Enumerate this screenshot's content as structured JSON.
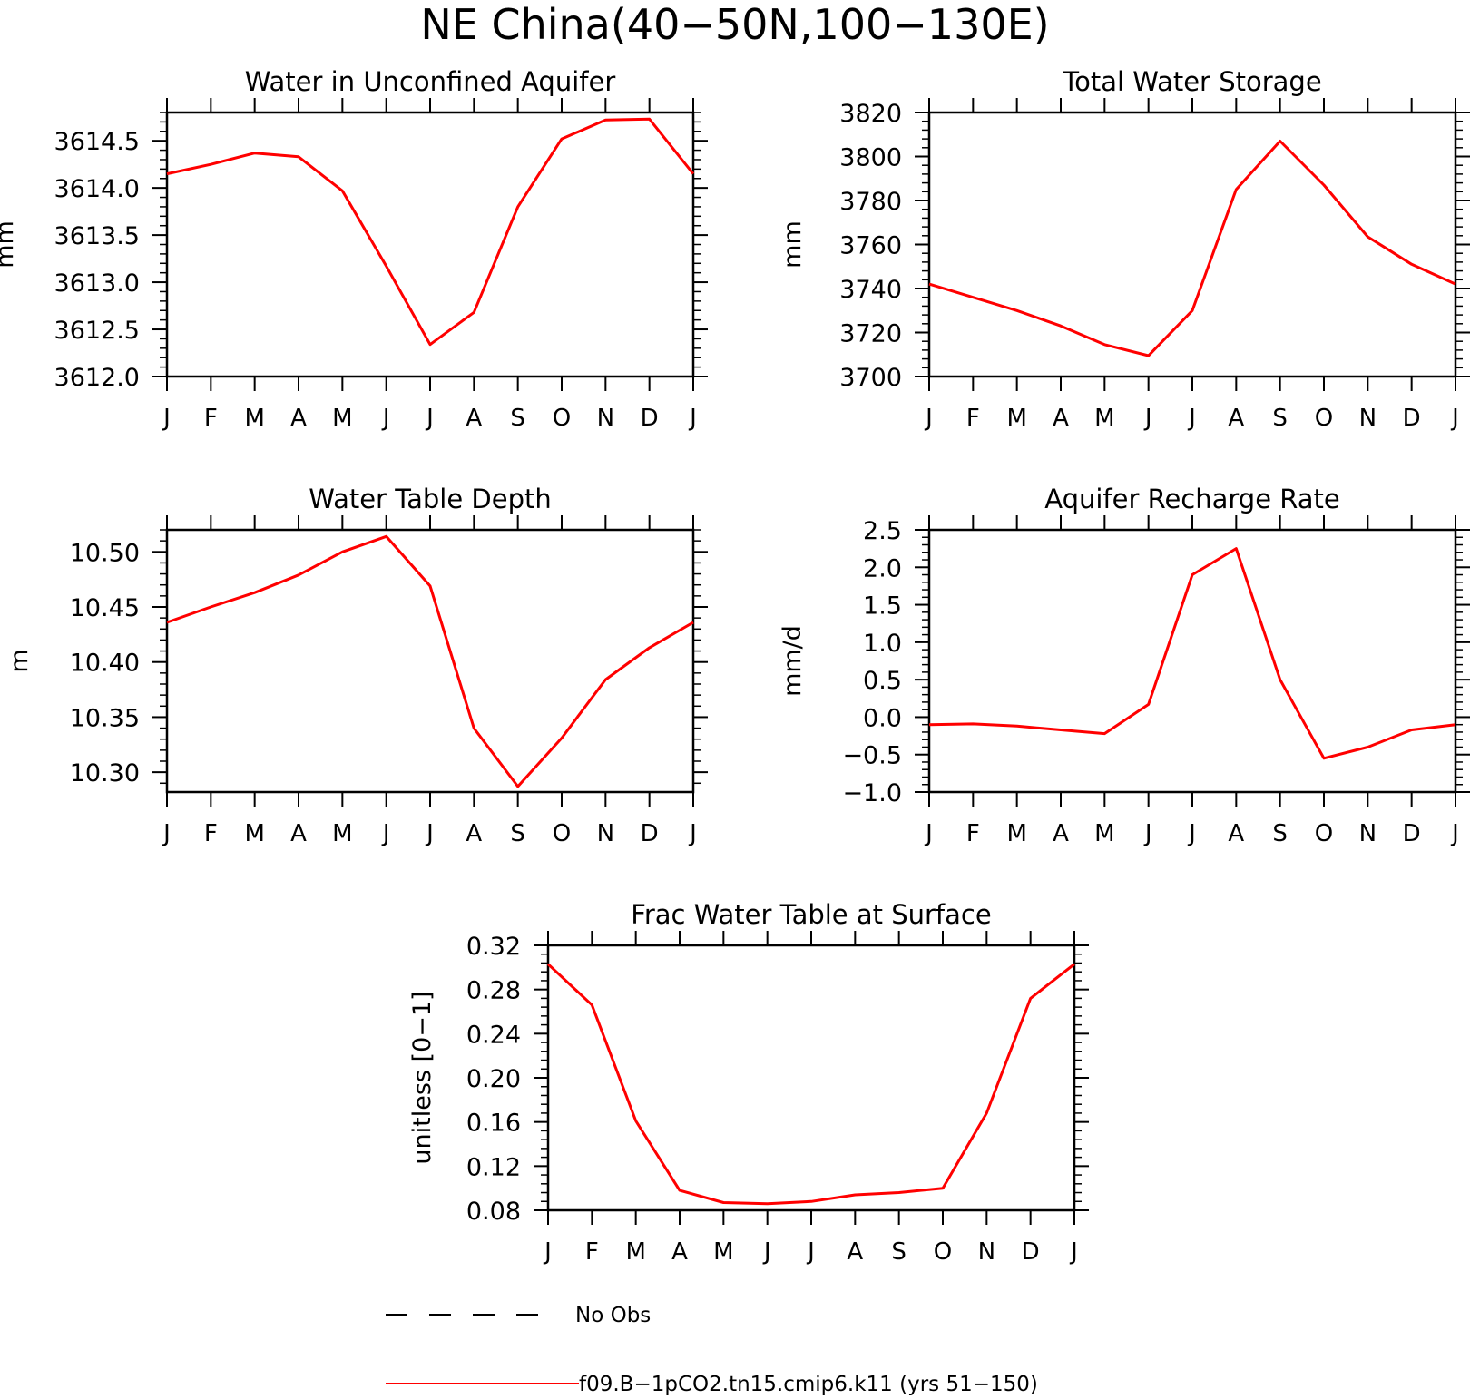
{
  "figure": {
    "title": "NE China(40−50N,100−130E)",
    "line_color": "#ff0000",
    "legend": [
      {
        "label": "No Obs",
        "style": "dashed",
        "color": "#000000"
      },
      {
        "label": "f09.B−1pCO2.tn15.cmip6.k11 (yrs 51−150)",
        "style": "solid",
        "color": "#ff0000"
      }
    ]
  },
  "chart_data": [
    {
      "type": "line",
      "title": "Water in Unconfined Aquifer",
      "ylabel": "mm",
      "categories": [
        "J",
        "F",
        "M",
        "A",
        "M",
        "J",
        "J",
        "A",
        "S",
        "O",
        "N",
        "D",
        "J"
      ],
      "ylim": [
        3612.0,
        3614.8
      ],
      "yticks": [
        3612.0,
        3612.5,
        3613.0,
        3613.5,
        3614.0,
        3614.5
      ],
      "ytick_labels": [
        "3612.0",
        "3612.5",
        "3613.0",
        "3613.5",
        "3614.0",
        "3614.5"
      ],
      "series": [
        {
          "values": [
            3614.15,
            3614.25,
            3614.37,
            3614.33,
            3613.97,
            3613.17,
            3612.34,
            3612.68,
            3613.8,
            3614.52,
            3614.72,
            3614.73,
            3614.15
          ]
        }
      ]
    },
    {
      "type": "line",
      "title": "Total Water Storage",
      "ylabel": "mm",
      "categories": [
        "J",
        "F",
        "M",
        "A",
        "M",
        "J",
        "J",
        "A",
        "S",
        "O",
        "N",
        "D",
        "J"
      ],
      "ylim": [
        3700,
        3820
      ],
      "yticks": [
        3700,
        3720,
        3740,
        3760,
        3780,
        3800,
        3820
      ],
      "ytick_labels": [
        "3700",
        "3720",
        "3740",
        "3760",
        "3780",
        "3800",
        "3820"
      ],
      "series": [
        {
          "values": [
            3742,
            3736,
            3730,
            3723,
            3714.5,
            3709.5,
            3730,
            3785,
            3807,
            3787,
            3763.5,
            3751,
            3742
          ]
        }
      ]
    },
    {
      "type": "line",
      "title": "Water Table Depth",
      "ylabel": "m",
      "categories": [
        "J",
        "F",
        "M",
        "A",
        "M",
        "J",
        "J",
        "A",
        "S",
        "O",
        "N",
        "D",
        "J"
      ],
      "ylim": [
        10.282,
        10.52
      ],
      "yticks": [
        10.3,
        10.35,
        10.4,
        10.45,
        10.5
      ],
      "ytick_labels": [
        "10.30",
        "10.35",
        "10.40",
        "10.45",
        "10.50"
      ],
      "series": [
        {
          "values": [
            10.436,
            10.45,
            10.463,
            10.479,
            10.5,
            10.514,
            10.469,
            10.34,
            10.287,
            10.331,
            10.384,
            10.413,
            10.436
          ]
        }
      ]
    },
    {
      "type": "line",
      "title": "Aquifer Recharge Rate",
      "ylabel": "mm/d",
      "categories": [
        "J",
        "F",
        "M",
        "A",
        "M",
        "J",
        "J",
        "A",
        "S",
        "O",
        "N",
        "D",
        "J"
      ],
      "ylim": [
        -1.0,
        2.5
      ],
      "yticks": [
        -1.0,
        -0.5,
        0.0,
        0.5,
        1.0,
        1.5,
        2.0,
        2.5
      ],
      "ytick_labels": [
        "−1.0",
        "−0.5",
        "0.0",
        "0.5",
        "1.0",
        "1.5",
        "2.0",
        "2.5"
      ],
      "series": [
        {
          "values": [
            -0.1,
            -0.09,
            -0.12,
            -0.17,
            -0.22,
            0.17,
            1.9,
            2.25,
            0.5,
            -0.55,
            -0.4,
            -0.17,
            -0.1
          ]
        }
      ]
    },
    {
      "type": "line",
      "title": "Frac Water Table at Surface",
      "ylabel": "unitless [0−1]",
      "categories": [
        "J",
        "F",
        "M",
        "A",
        "M",
        "J",
        "J",
        "A",
        "S",
        "O",
        "N",
        "D",
        "J"
      ],
      "ylim": [
        0.08,
        0.32
      ],
      "yticks": [
        0.08,
        0.12,
        0.16,
        0.2,
        0.24,
        0.28,
        0.32
      ],
      "ytick_labels": [
        "0.08",
        "0.12",
        "0.16",
        "0.20",
        "0.24",
        "0.28",
        "0.32"
      ],
      "series": [
        {
          "values": [
            0.303,
            0.266,
            0.161,
            0.098,
            0.087,
            0.086,
            0.088,
            0.094,
            0.096,
            0.1,
            0.168,
            0.272,
            0.303
          ]
        }
      ]
    }
  ]
}
